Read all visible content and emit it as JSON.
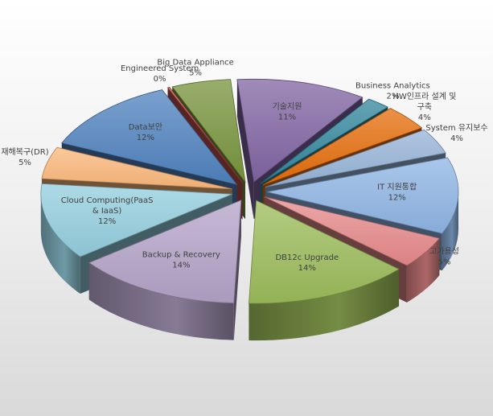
{
  "chart_data": {
    "type": "pie",
    "subtype": "3d-exploded",
    "legend": "none",
    "slices": [
      {
        "name": "기술지원",
        "value": 11,
        "label": "11%",
        "color": "#8064a2",
        "name_lines": [
          "기술지원"
        ]
      },
      {
        "name": "Business Analytics",
        "value": 2,
        "label": "2%",
        "color": "#31859c",
        "name_lines": [
          "Business Analytics"
        ]
      },
      {
        "name": "HW인프라 설계 및 구축",
        "value": 4,
        "label": "4%",
        "color": "#e46c0a",
        "name_lines": [
          "HW인프라 설계 및",
          "구축"
        ]
      },
      {
        "name": "System 유지보수",
        "value": 4,
        "label": "4%",
        "color": "#95b3d7",
        "name_lines": [
          "System 유지보수"
        ]
      },
      {
        "name": "IT 지원통합",
        "value": 12,
        "label": "12%",
        "color": "#8eb4e3",
        "name_lines": [
          "IT 지원통합"
        ]
      },
      {
        "name": "고가용성",
        "value": 5,
        "label": "5%",
        "color": "#e6898a",
        "name_lines": [
          "고가용성"
        ]
      },
      {
        "name": "DB12c Upgrade",
        "value": 14,
        "label": "14%",
        "color": "#9bbb59",
        "name_lines": [
          "DB12c Upgrade"
        ]
      },
      {
        "name": "Backup & Recovery",
        "value": 14,
        "label": "14%",
        "color": "#b3a2c7",
        "name_lines": [
          "Backup & Recovery"
        ]
      },
      {
        "name": "Cloud Computing(PaaS & IaaS)",
        "value": 12,
        "label": "12%",
        "color": "#93cddd",
        "name_lines": [
          "Cloud Computing(PaaS",
          "& IaaS)"
        ]
      },
      {
        "name": "재해복구(DR)",
        "value": 5,
        "label": "5%",
        "color": "#fab77a",
        "name_lines": [
          "재해복구(DR)"
        ]
      },
      {
        "name": "Data보안",
        "value": 12,
        "label": "12%",
        "color": "#4f81bd",
        "name_lines": [
          "Data보안"
        ]
      },
      {
        "name": "Engineered System",
        "value": 0,
        "label": "0%",
        "color": "#c0504d",
        "name_lines": [
          "Engineered System"
        ]
      },
      {
        "name": "Big Data Appliance",
        "value": 5,
        "label": "5%",
        "color": "#77933c",
        "name_lines": [
          "Big Data Appliance"
        ]
      }
    ]
  }
}
